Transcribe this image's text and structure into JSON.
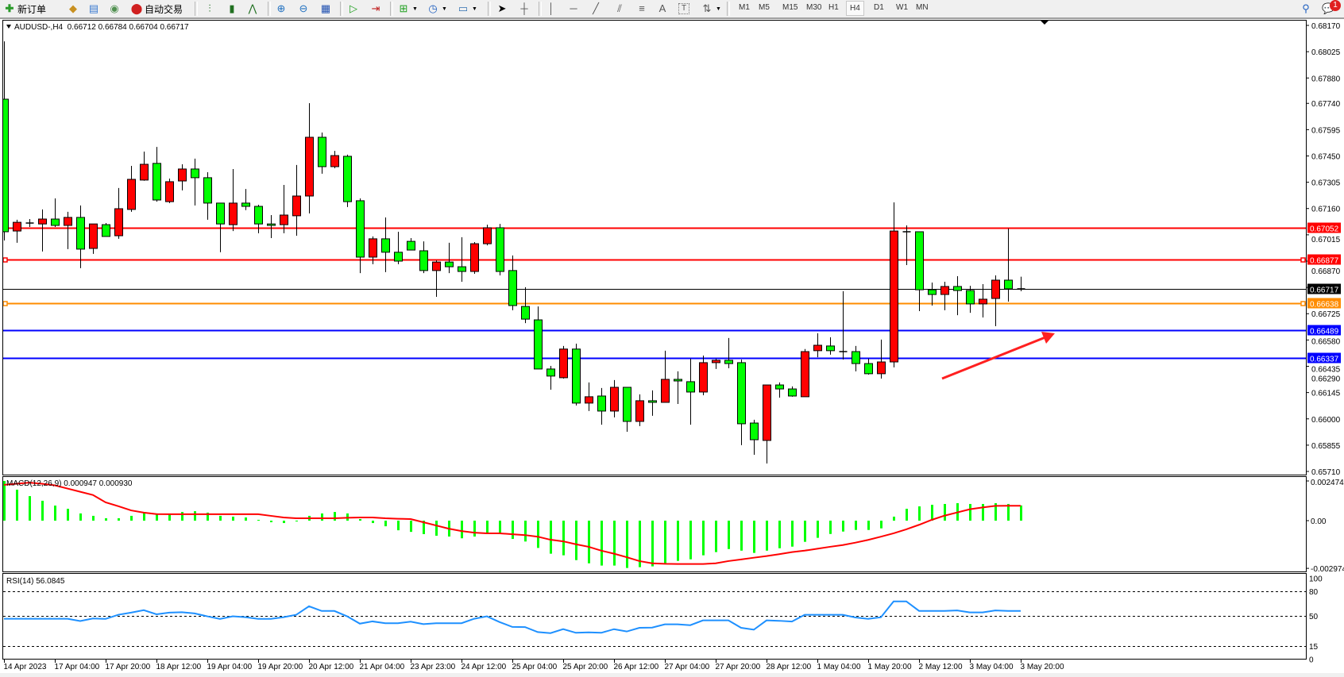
{
  "toolbar": {
    "new_order_label": "新订单",
    "auto_trading_label": "自动交易",
    "icons": [
      "new-order-icon",
      "metaeditor-icon",
      "navigator-icon",
      "signals-icon",
      "auto-trading-icon",
      "bar-chart-icon",
      "candlestick-icon",
      "line-chart-icon",
      "zoom-in-icon",
      "zoom-out-icon",
      "tile-windows-icon",
      "autoscroll-icon",
      "chart-shift-icon",
      "new-chart-icon",
      "periods-icon",
      "template-icon",
      "cursor-icon",
      "crosshair-icon",
      "vertical-line-icon",
      "horizontal-line-icon",
      "trendline-icon",
      "fibo-channel-icon",
      "fibo-icon",
      "text-icon",
      "text-label-icon",
      "arrows-icon",
      "search-icon",
      "chat-icon"
    ],
    "text_tool": "A",
    "label_tool": "T",
    "timeframes": [
      "M1",
      "M5",
      "M15",
      "M30",
      "H1",
      "H4",
      "D1",
      "W1",
      "MN"
    ],
    "active_timeframe": "H4",
    "notification_count": "1"
  },
  "chart": {
    "title": "AUDUSD-,H4  0.66712 0.66784 0.66704 0.66717",
    "symbol": "AUDUSD-",
    "timeframe": "H4",
    "colors": {
      "bull": "#ff0000",
      "bear": "#00ff00",
      "macd_hist": "#00ff00",
      "macd_signal": "#ff0000",
      "rsi": "#1e90ff"
    },
    "price_axis": [
      "0.68170",
      "0.68025",
      "0.67880",
      "0.67740",
      "0.67595",
      "0.67450",
      "0.67305",
      "0.67160",
      "0.67015",
      "0.66870",
      "0.66725",
      "0.66580",
      "0.66435",
      "0.66290",
      "0.66145",
      "0.66000",
      "0.65855",
      "0.65710"
    ],
    "price_range": [
      0.6571,
      0.6817
    ],
    "hlines": [
      {
        "value": "0.67052",
        "color": "#ff0000"
      },
      {
        "value": "0.66877",
        "color": "#ff0000"
      },
      {
        "value": "0.66717",
        "color": "#000000"
      },
      {
        "value": "0.66638",
        "color": "#ff8c00"
      },
      {
        "value": "0.66489",
        "color": "#0000ff"
      },
      {
        "value": "0.66337",
        "color": "#0000ff"
      }
    ],
    "time_axis": [
      "14 Apr 2023",
      "17 Apr 04:00",
      "17 Apr 20:00",
      "18 Apr 12:00",
      "19 Apr 04:00",
      "19 Apr 20:00",
      "20 Apr 12:00",
      "21 Apr 04:00",
      "23 Apr 23:00",
      "24 Apr 12:00",
      "25 Apr 04:00",
      "25 Apr 20:00",
      "26 Apr 12:00",
      "27 Apr 04:00",
      "27 Apr 20:00",
      "28 Apr 12:00",
      "1 May 04:00",
      "1 May 20:00",
      "2 May 12:00",
      "3 May 04:00",
      "3 May 20:00"
    ],
    "arrow_color": "#ff2020",
    "ohlc": [
      [
        0.67763,
        0.68082,
        0.66984,
        0.67032
      ],
      [
        0.67036,
        0.67098,
        0.66971,
        0.67084
      ],
      [
        0.6708,
        0.67102,
        0.67058,
        0.6708
      ],
      [
        0.67075,
        0.67155,
        0.66923,
        0.67102
      ],
      [
        0.67102,
        0.67216,
        0.67058,
        0.67067
      ],
      [
        0.67067,
        0.67142,
        0.66936,
        0.67111
      ],
      [
        0.67111,
        0.67177,
        0.66831,
        0.66936
      ],
      [
        0.6694,
        0.67075,
        0.6691,
        0.67075
      ],
      [
        0.67071,
        0.6708,
        0.67006,
        0.67006
      ],
      [
        0.6701,
        0.67273,
        0.66993,
        0.67159
      ],
      [
        0.67155,
        0.67395,
        0.67142,
        0.67321
      ],
      [
        0.67317,
        0.67474,
        0.67313,
        0.67404
      ],
      [
        0.67409,
        0.675,
        0.67198,
        0.67207
      ],
      [
        0.67198,
        0.67325,
        0.6719,
        0.67308
      ],
      [
        0.67312,
        0.67404,
        0.6726,
        0.67378
      ],
      [
        0.67378,
        0.67435,
        0.67177,
        0.6733
      ],
      [
        0.6733,
        0.6736,
        0.67098,
        0.6719
      ],
      [
        0.6719,
        0.6719,
        0.66919,
        0.67075
      ],
      [
        0.67071,
        0.67378,
        0.67036,
        0.6719
      ],
      [
        0.6719,
        0.67268,
        0.67151,
        0.67172
      ],
      [
        0.67172,
        0.67181,
        0.67024,
        0.67075
      ],
      [
        0.67075,
        0.67124,
        0.66997,
        0.67067
      ],
      [
        0.67071,
        0.6729,
        0.67024,
        0.67124
      ],
      [
        0.6712,
        0.674,
        0.6701,
        0.67229
      ],
      [
        0.67229,
        0.67741,
        0.67133,
        0.67553
      ],
      [
        0.67553,
        0.67579,
        0.67352,
        0.67391
      ],
      [
        0.67391,
        0.67478,
        0.67382,
        0.67452
      ],
      [
        0.67448,
        0.67457,
        0.67168,
        0.67198
      ],
      [
        0.67203,
        0.67216,
        0.66804,
        0.66892
      ],
      [
        0.66892,
        0.67006,
        0.66853,
        0.66993
      ],
      [
        0.66993,
        0.67111,
        0.66809,
        0.66919
      ],
      [
        0.66919,
        0.67032,
        0.66853,
        0.6687
      ],
      [
        0.66979,
        0.66997,
        0.66931,
        0.66931
      ],
      [
        0.66927,
        0.66979,
        0.66804,
        0.66818
      ],
      [
        0.66818,
        0.66874,
        0.66673,
        0.66865
      ],
      [
        0.66865,
        0.66971,
        0.66804,
        0.66839
      ],
      [
        0.66839,
        0.67002,
        0.66756,
        0.66813
      ],
      [
        0.66813,
        0.66975,
        0.668,
        0.66966
      ],
      [
        0.66966,
        0.67071,
        0.66957,
        0.67054
      ],
      [
        0.67054,
        0.67075,
        0.66791,
        0.66813
      ],
      [
        0.66818,
        0.66901,
        0.66599,
        0.66625
      ],
      [
        0.6662,
        0.66726,
        0.66528,
        0.6655
      ],
      [
        0.66546,
        0.6662,
        0.66275,
        0.66275
      ],
      [
        0.66275,
        0.66292,
        0.66161,
        0.66236
      ],
      [
        0.66227,
        0.66402,
        0.66222,
        0.66385
      ],
      [
        0.66385,
        0.66415,
        0.66074,
        0.66087
      ],
      [
        0.66087,
        0.66201,
        0.66043,
        0.66122
      ],
      [
        0.66126,
        0.6617,
        0.65968,
        0.66043
      ],
      [
        0.66043,
        0.66214,
        0.66008,
        0.66174
      ],
      [
        0.66174,
        0.66174,
        0.65929,
        0.65986
      ],
      [
        0.65986,
        0.66135,
        0.6596,
        0.661
      ],
      [
        0.661,
        0.66157,
        0.66017,
        0.66091
      ],
      [
        0.66091,
        0.66376,
        0.66091,
        0.66218
      ],
      [
        0.66218,
        0.66262,
        0.66082,
        0.66209
      ],
      [
        0.66205,
        0.66332,
        0.65968,
        0.66148
      ],
      [
        0.66148,
        0.66349,
        0.6613,
        0.6631
      ],
      [
        0.6631,
        0.66332,
        0.66275,
        0.66323
      ],
      [
        0.66323,
        0.66446,
        0.66279,
        0.66305
      ],
      [
        0.6631,
        0.66327,
        0.65855,
        0.65973
      ],
      [
        0.65977,
        0.65995,
        0.65802,
        0.65885
      ],
      [
        0.65881,
        0.66187,
        0.65754,
        0.66187
      ],
      [
        0.66187,
        0.66201,
        0.66117,
        0.66165
      ],
      [
        0.66165,
        0.66179,
        0.66122,
        0.66126
      ],
      [
        0.66122,
        0.66385,
        0.66122,
        0.66371
      ],
      [
        0.66376,
        0.66472,
        0.6634,
        0.66406
      ],
      [
        0.66402,
        0.6645,
        0.66354,
        0.66376
      ],
      [
        0.66371,
        0.66704,
        0.66327,
        0.66371
      ],
      [
        0.66371,
        0.66402,
        0.66262,
        0.66305
      ],
      [
        0.66305,
        0.66332,
        0.66244,
        0.66249
      ],
      [
        0.66249,
        0.66437,
        0.66222,
        0.66314
      ],
      [
        0.66314,
        0.67194,
        0.66284,
        0.67036
      ],
      [
        0.67036,
        0.67067,
        0.66848,
        0.67032
      ],
      [
        0.67032,
        0.67032,
        0.66594,
        0.66712
      ],
      [
        0.66712,
        0.66752,
        0.66625,
        0.66686
      ],
      [
        0.66686,
        0.66756,
        0.66599,
        0.6673
      ],
      [
        0.6673,
        0.66787,
        0.66572,
        0.66708
      ],
      [
        0.66708,
        0.66734,
        0.66585,
        0.66634
      ],
      [
        0.66634,
        0.66743,
        0.66559,
        0.6666
      ],
      [
        0.66664,
        0.66791,
        0.66511,
        0.66765
      ],
      [
        0.66765,
        0.6705,
        0.66647,
        0.66717
      ],
      [
        0.66712,
        0.66784,
        0.66704,
        0.66717
      ]
    ]
  },
  "macd": {
    "label": "MACD(12,26,9) 0.000947 0.000930",
    "axis": [
      {
        "text": "0.002474",
        "value": 0.002474
      },
      {
        "text": "0.00",
        "value": 0
      },
      {
        "text": "-0.002974",
        "value": -0.002974
      }
    ],
    "histogram": [
      0.00247,
      0.00193,
      0.00153,
      0.00124,
      0.00094,
      0.00074,
      0.00045,
      0.0003,
      0.00015,
      0.00015,
      0.0003,
      0.0005,
      0.00045,
      0.0004,
      0.00054,
      0.00059,
      0.0005,
      0.0003,
      0.00025,
      0.0002,
      5e-05,
      -0.0001,
      -0.00015,
      -5e-05,
      0.0003,
      0.00045,
      0.00054,
      0.00045,
      0.0001,
      -0.00015,
      -0.00035,
      -0.0006,
      -0.0007,
      -0.00084,
      -0.00094,
      -0.00099,
      -0.0011,
      -0.00099,
      -0.00084,
      -0.00084,
      -0.00114,
      -0.0013,
      -0.0017,
      -0.00206,
      -0.00216,
      -0.00246,
      -0.00266,
      -0.0028,
      -0.0028,
      -0.00295,
      -0.0029,
      -0.00285,
      -0.00266,
      -0.00251,
      -0.00241,
      -0.00216,
      -0.00196,
      -0.00177,
      -0.00187,
      -0.00201,
      -0.00187,
      -0.00172,
      -0.00162,
      -0.00132,
      -0.00107,
      -0.00083,
      -0.00068,
      -0.00058,
      -0.00058,
      -0.00048,
      0.00025,
      0.00074,
      0.00089,
      0.00099,
      0.00104,
      0.00109,
      0.00104,
      0.00104,
      0.00109,
      0.00104,
      0.000947
    ],
    "signal": [
      0.00223,
      0.0023,
      0.00237,
      0.0023,
      0.0022,
      0.002,
      0.0018,
      0.0016,
      0.00114,
      0.0009,
      0.00064,
      0.0005,
      0.00041,
      0.0004,
      0.0004,
      0.0004,
      0.0004,
      0.0004,
      0.0004,
      0.0004,
      0.0004,
      0.0003,
      0.0002,
      0.00015,
      0.00015,
      0.00015,
      0.00015,
      0.00018,
      0.0002,
      0.0002,
      0.00015,
      0.00012,
      0.0001,
      -0.0001,
      -0.0003,
      -0.0005,
      -0.00065,
      -0.00075,
      -0.00079,
      -0.00079,
      -0.00085,
      -0.0009,
      -0.001,
      -0.00119,
      -0.00129,
      -0.00147,
      -0.00163,
      -0.00187,
      -0.00206,
      -0.00228,
      -0.00252,
      -0.00266,
      -0.00269,
      -0.0027,
      -0.0027,
      -0.0027,
      -0.00266,
      -0.00252,
      -0.00242,
      -0.00231,
      -0.00221,
      -0.00209,
      -0.00196,
      -0.00187,
      -0.00175,
      -0.00163,
      -0.00152,
      -0.00137,
      -0.0012,
      -0.001,
      -0.00079,
      -0.00054,
      -0.00026,
      5e-05,
      0.00031,
      0.00051,
      0.00071,
      0.00082,
      0.00092,
      0.00093,
      0.00093
    ]
  },
  "rsi": {
    "label": "RSI(14) 56.0845",
    "axis": [
      "100",
      "80",
      "50",
      "15",
      "0"
    ],
    "levels": [
      80,
      50,
      15
    ],
    "values": [
      46.7,
      46.7,
      46.7,
      46.7,
      46.7,
      46.7,
      44,
      47,
      46.5,
      51.4,
      54,
      57,
      52,
      54,
      54.5,
      53,
      49.5,
      46.5,
      49.5,
      48.5,
      46.5,
      46.5,
      48.5,
      51.4,
      61.7,
      56,
      56,
      49.5,
      41,
      43.6,
      41.5,
      41.5,
      43.3,
      40.5,
      41.5,
      41.5,
      41.5,
      46.7,
      49.5,
      42.8,
      37.2,
      37,
      31.2,
      30,
      34.6,
      30.4,
      30.9,
      30.4,
      34.6,
      31.9,
      36.2,
      36.4,
      40.2,
      40.2,
      39.2,
      44.8,
      44.8,
      44.8,
      36.2,
      34,
      44.8,
      44.3,
      43.4,
      51.3,
      51.3,
      51.3,
      51.3,
      48.2,
      46.6,
      48.4,
      67.7,
      67.7,
      56.1,
      56.1,
      56.1,
      56.7,
      54.2,
      54.2,
      56.7,
      56.1,
      56.08
    ]
  }
}
